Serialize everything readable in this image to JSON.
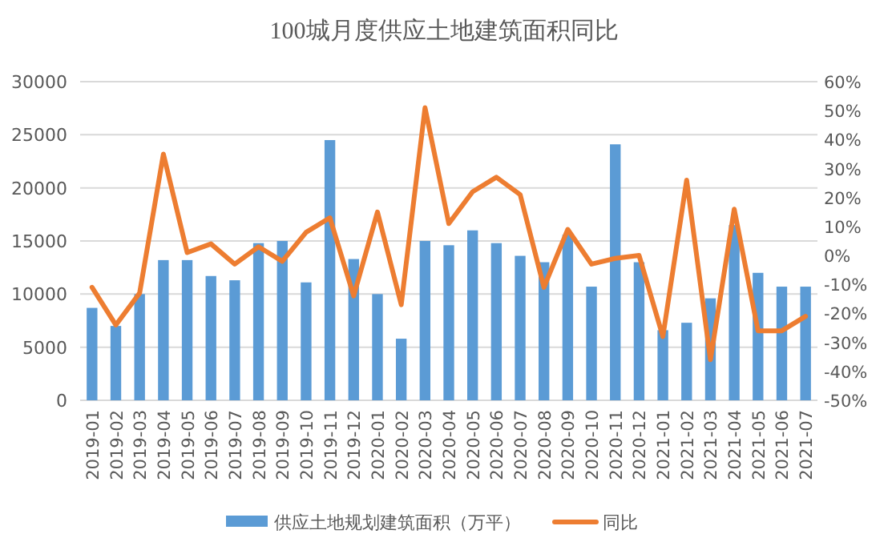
{
  "chart_data": {
    "type": "bar",
    "title": "100城月度供应土地建筑面积同比",
    "categories": [
      "2019-01",
      "2019-02",
      "2019-03",
      "2019-04",
      "2019-05",
      "2019-06",
      "2019-07",
      "2019-08",
      "2019-09",
      "2019-10",
      "2019-11",
      "2019-12",
      "2020-01",
      "2020-02",
      "2020-03",
      "2020-04",
      "2020-05",
      "2020-06",
      "2020-07",
      "2020-08",
      "2020-09",
      "2020-10",
      "2020-11",
      "2020-12",
      "2021-01",
      "2021-02",
      "2021-03",
      "2021-04",
      "2021-05",
      "2021-06",
      "2021-07"
    ],
    "series": [
      {
        "name": "供应土地规划建筑面积（万平）",
        "color": "#5b9bd5",
        "values": [
          8700,
          7000,
          10000,
          13200,
          13200,
          11700,
          11300,
          14800,
          15000,
          11100,
          24500,
          13300,
          10000,
          5800,
          15000,
          14600,
          16000,
          14800,
          13600,
          13000,
          15600,
          10700,
          24100,
          13000,
          6600,
          7300,
          9600,
          16500,
          12000,
          10700,
          10700
        ]
      },
      {
        "name": "同比",
        "type": "line",
        "axis": "y2",
        "color": "#ed7d31",
        "values": [
          -11,
          -24,
          -13,
          35,
          1,
          4,
          -3,
          3,
          -2,
          8,
          13,
          -14,
          15,
          -17,
          51,
          11,
          22,
          27,
          21,
          -11,
          9,
          -3,
          -1,
          0,
          -28,
          26,
          -36,
          16,
          -26,
          -26,
          -21
        ]
      }
    ],
    "ylim": [
      0,
      30000
    ],
    "yticks": [
      0,
      5000,
      10000,
      15000,
      20000,
      25000,
      30000
    ],
    "y2lim": [
      -50,
      60
    ],
    "y2ticks": [
      {
        "value": -50,
        "label": "-50%"
      },
      {
        "value": -40,
        "label": "-40%"
      },
      {
        "value": -30,
        "label": "-30%"
      },
      {
        "value": -20,
        "label": "-20%"
      },
      {
        "value": -10,
        "label": "-10%"
      },
      {
        "value": 0,
        "label": "0%"
      },
      {
        "value": 10,
        "label": "10%"
      },
      {
        "value": 20,
        "label": "20%"
      },
      {
        "value": 30,
        "label": "30%"
      },
      {
        "value": 40,
        "label": "40%"
      },
      {
        "value": 50,
        "label": "50%"
      },
      {
        "value": 60,
        "label": "60%"
      }
    ],
    "grid": "y",
    "legend": "bottom",
    "marker": "none"
  }
}
